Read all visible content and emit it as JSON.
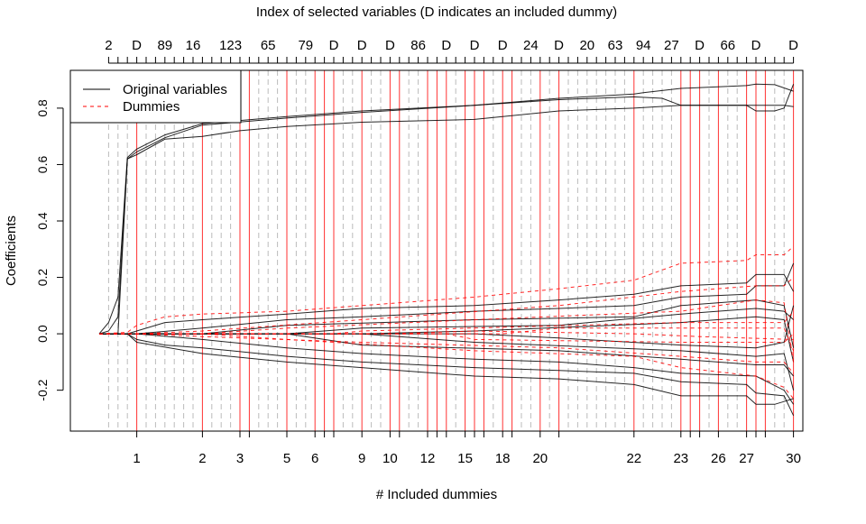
{
  "chart_data": {
    "type": "line",
    "title": "Index of selected variables (D indicates an included dummy)",
    "xlabel": "# Included dummies",
    "ylabel": "Coefficients",
    "ylim": [
      -0.345,
      0.934
    ],
    "y_ticks": [
      "-0.2",
      "0.0",
      "0.2",
      "0.4",
      "0.6",
      "0.8"
    ],
    "y_tick_values": [
      -0.2,
      0.0,
      0.2,
      0.4,
      0.6,
      0.8
    ],
    "n_steps": 74,
    "top_labels": [
      {
        "step": 1,
        "label": "2"
      },
      {
        "step": 4,
        "label": "D"
      },
      {
        "step": 7,
        "label": "89"
      },
      {
        "step": 10,
        "label": "16"
      },
      {
        "step": 14,
        "label": "123"
      },
      {
        "step": 18,
        "label": "65"
      },
      {
        "step": 22,
        "label": "79"
      },
      {
        "step": 25,
        "label": "D"
      },
      {
        "step": 28,
        "label": "D"
      },
      {
        "step": 31,
        "label": "D"
      },
      {
        "step": 34,
        "label": "86"
      },
      {
        "step": 37,
        "label": "D"
      },
      {
        "step": 40,
        "label": "D"
      },
      {
        "step": 43,
        "label": "D"
      },
      {
        "step": 46,
        "label": "24"
      },
      {
        "step": 49,
        "label": "D"
      },
      {
        "step": 52,
        "label": "20"
      },
      {
        "step": 55,
        "label": "63"
      },
      {
        "step": 58,
        "label": "94"
      },
      {
        "step": 61,
        "label": "27"
      },
      {
        "step": 64,
        "label": "D"
      },
      {
        "step": 67,
        "label": "66"
      },
      {
        "step": 70,
        "label": "D"
      },
      {
        "step": 74,
        "label": "D"
      }
    ],
    "dummy_steps": [
      4,
      11,
      15,
      16,
      20,
      23,
      24,
      25,
      28,
      31,
      32,
      35,
      36,
      37,
      39,
      40,
      41,
      43,
      44,
      47,
      49,
      57,
      62,
      63,
      64,
      66,
      69,
      70,
      71,
      74
    ],
    "bottom_labels": [
      {
        "step": 4,
        "label": "1"
      },
      {
        "step": 11,
        "label": "2"
      },
      {
        "step": 15,
        "label": "3"
      },
      {
        "step": 20,
        "label": "5"
      },
      {
        "step": 23,
        "label": "6"
      },
      {
        "step": 28,
        "label": "9"
      },
      {
        "step": 31,
        "label": "10"
      },
      {
        "step": 35,
        "label": "12"
      },
      {
        "step": 39,
        "label": "15"
      },
      {
        "step": 43,
        "label": "18"
      },
      {
        "step": 47,
        "label": "20"
      },
      {
        "step": 57,
        "label": "22"
      },
      {
        "step": 62,
        "label": "23"
      },
      {
        "step": 66,
        "label": "26"
      },
      {
        "step": 69,
        "label": "27"
      },
      {
        "step": 74,
        "label": "30"
      }
    ],
    "legend": {
      "position": "top-left",
      "entries": [
        {
          "label": "Original variables",
          "color": "#000000",
          "style": "solid"
        },
        {
          "label": "Dummies",
          "color": "#ff0000",
          "style": "dashed"
        }
      ]
    },
    "series": [
      {
        "kind": "original",
        "points": [
          [
            0,
            0
          ],
          [
            1,
            0.04
          ],
          [
            2,
            0.13
          ],
          [
            3,
            0.625
          ],
          [
            4,
            0.655
          ],
          [
            7,
            0.705
          ],
          [
            11,
            0.745
          ],
          [
            20,
            0.77
          ],
          [
            28,
            0.79
          ],
          [
            40,
            0.81
          ],
          [
            49,
            0.835
          ],
          [
            57,
            0.85
          ],
          [
            58,
            0.855
          ],
          [
            62,
            0.87
          ],
          [
            69,
            0.88
          ],
          [
            70,
            0.885
          ],
          [
            72,
            0.883
          ],
          [
            74,
            0.86
          ]
        ]
      },
      {
        "kind": "original",
        "points": [
          [
            0,
            0
          ],
          [
            1,
            0.01
          ],
          [
            2,
            0.06
          ],
          [
            3,
            0.62
          ],
          [
            4,
            0.645
          ],
          [
            7,
            0.695
          ],
          [
            11,
            0.74
          ],
          [
            20,
            0.765
          ],
          [
            28,
            0.785
          ],
          [
            40,
            0.81
          ],
          [
            49,
            0.83
          ],
          [
            57,
            0.84
          ],
          [
            60,
            0.835
          ],
          [
            62,
            0.81
          ],
          [
            69,
            0.81
          ],
          [
            70,
            0.79
          ],
          [
            72,
            0.79
          ],
          [
            73,
            0.8
          ],
          [
            74,
            0.885
          ]
        ]
      },
      {
        "kind": "original",
        "points": [
          [
            0,
            0
          ],
          [
            2,
            0.0
          ],
          [
            3,
            0.62
          ],
          [
            4,
            0.635
          ],
          [
            7,
            0.69
          ],
          [
            11,
            0.7
          ],
          [
            15,
            0.72
          ],
          [
            20,
            0.735
          ],
          [
            28,
            0.75
          ],
          [
            40,
            0.76
          ],
          [
            49,
            0.79
          ],
          [
            57,
            0.8
          ],
          [
            62,
            0.81
          ],
          [
            70,
            0.81
          ],
          [
            73,
            0.81
          ],
          [
            74,
            0.805
          ]
        ]
      },
      {
        "kind": "original",
        "points": [
          [
            0,
            0
          ],
          [
            3,
            0
          ],
          [
            4,
            0.01
          ],
          [
            7,
            0.04
          ],
          [
            11,
            0.05
          ],
          [
            20,
            0.07
          ],
          [
            28,
            0.09
          ],
          [
            40,
            0.1
          ],
          [
            49,
            0.12
          ],
          [
            57,
            0.14
          ],
          [
            62,
            0.17
          ],
          [
            69,
            0.18
          ],
          [
            70,
            0.21
          ],
          [
            73,
            0.21
          ],
          [
            74,
            0.15
          ]
        ]
      },
      {
        "kind": "original",
        "points": [
          [
            0,
            0
          ],
          [
            4,
            0
          ],
          [
            11,
            0.02
          ],
          [
            20,
            0.05
          ],
          [
            28,
            0.06
          ],
          [
            40,
            0.08
          ],
          [
            49,
            0.09
          ],
          [
            57,
            0.1
          ],
          [
            62,
            0.13
          ],
          [
            69,
            0.14
          ],
          [
            70,
            0.17
          ],
          [
            73,
            0.17
          ],
          [
            74,
            0.25
          ]
        ]
      },
      {
        "kind": "original",
        "points": [
          [
            0,
            0
          ],
          [
            11,
            0
          ],
          [
            20,
            0.03
          ],
          [
            40,
            0.05
          ],
          [
            57,
            0.06
          ],
          [
            62,
            0.1
          ],
          [
            70,
            0.12
          ],
          [
            73,
            0.1
          ],
          [
            74,
            -0.05
          ]
        ]
      },
      {
        "kind": "original",
        "points": [
          [
            0,
            0
          ],
          [
            20,
            0
          ],
          [
            28,
            0.02
          ],
          [
            49,
            0.03
          ],
          [
            62,
            0.07
          ],
          [
            70,
            0.09
          ],
          [
            73,
            0.08
          ],
          [
            74,
            0.05
          ]
        ]
      },
      {
        "kind": "original",
        "points": [
          [
            0,
            0
          ],
          [
            28,
            0
          ],
          [
            40,
            0.01
          ],
          [
            62,
            0.04
          ],
          [
            70,
            0.06
          ],
          [
            73,
            0.05
          ],
          [
            74,
            -0.1
          ]
        ]
      },
      {
        "kind": "original",
        "points": [
          [
            0,
            0
          ],
          [
            3,
            0
          ],
          [
            4,
            -0.02
          ],
          [
            7,
            -0.04
          ],
          [
            11,
            -0.05
          ],
          [
            20,
            -0.08
          ],
          [
            28,
            -0.1
          ],
          [
            40,
            -0.12
          ],
          [
            49,
            -0.13
          ],
          [
            57,
            -0.14
          ],
          [
            62,
            -0.17
          ],
          [
            69,
            -0.18
          ],
          [
            70,
            -0.21
          ],
          [
            73,
            -0.22
          ],
          [
            74,
            -0.29
          ]
        ]
      },
      {
        "kind": "original",
        "points": [
          [
            0,
            0
          ],
          [
            4,
            0
          ],
          [
            11,
            -0.02
          ],
          [
            20,
            -0.05
          ],
          [
            28,
            -0.07
          ],
          [
            40,
            -0.09
          ],
          [
            49,
            -0.1
          ],
          [
            57,
            -0.12
          ],
          [
            62,
            -0.14
          ],
          [
            70,
            -0.15
          ],
          [
            73,
            -0.2
          ],
          [
            74,
            -0.25
          ]
        ]
      },
      {
        "kind": "original",
        "points": [
          [
            0,
            0
          ],
          [
            20,
            0
          ],
          [
            28,
            -0.04
          ],
          [
            49,
            -0.06
          ],
          [
            62,
            -0.09
          ],
          [
            70,
            -0.11
          ],
          [
            73,
            -0.11
          ],
          [
            74,
            -0.15
          ]
        ]
      },
      {
        "kind": "original",
        "points": [
          [
            0,
            0
          ],
          [
            28,
            0
          ],
          [
            40,
            -0.03
          ],
          [
            62,
            -0.06
          ],
          [
            70,
            -0.08
          ],
          [
            73,
            -0.07
          ],
          [
            74,
            -0.2
          ]
        ]
      },
      {
        "kind": "original",
        "points": [
          [
            0,
            0
          ],
          [
            40,
            0
          ],
          [
            49,
            -0.015
          ],
          [
            62,
            -0.04
          ],
          [
            70,
            -0.05
          ],
          [
            73,
            -0.03
          ],
          [
            74,
            0.1
          ]
        ]
      },
      {
        "kind": "original",
        "points": [
          [
            0,
            0
          ],
          [
            3,
            0
          ],
          [
            4,
            -0.03
          ],
          [
            11,
            -0.07
          ],
          [
            20,
            -0.1
          ],
          [
            40,
            -0.15
          ],
          [
            49,
            -0.16
          ],
          [
            57,
            -0.18
          ],
          [
            62,
            -0.22
          ],
          [
            69,
            -0.22
          ],
          [
            70,
            -0.25
          ],
          [
            72,
            -0.25
          ],
          [
            73,
            -0.24
          ],
          [
            74,
            -0.23
          ]
        ]
      },
      {
        "kind": "dummy",
        "points": [
          [
            0,
            0
          ],
          [
            3,
            0.005
          ],
          [
            4,
            0.03
          ],
          [
            7,
            0.06
          ],
          [
            11,
            0.07
          ],
          [
            20,
            0.08
          ],
          [
            28,
            0.1
          ],
          [
            40,
            0.13
          ],
          [
            49,
            0.16
          ],
          [
            57,
            0.19
          ],
          [
            62,
            0.25
          ],
          [
            69,
            0.26
          ],
          [
            70,
            0.28
          ],
          [
            73,
            0.28
          ],
          [
            74,
            0.31
          ]
        ]
      },
      {
        "kind": "dummy",
        "points": [
          [
            0,
            0
          ],
          [
            4,
            0
          ],
          [
            11,
            0.01
          ],
          [
            28,
            0.05
          ],
          [
            49,
            0.1
          ],
          [
            62,
            0.15
          ],
          [
            70,
            0.17
          ],
          [
            73,
            0.17
          ],
          [
            74,
            0.2
          ]
        ]
      },
      {
        "kind": "dummy",
        "points": [
          [
            0,
            0
          ],
          [
            11,
            0
          ],
          [
            20,
            0.02
          ],
          [
            40,
            0.05
          ],
          [
            62,
            0.08
          ],
          [
            70,
            0.12
          ],
          [
            73,
            0.11
          ],
          [
            74,
            -0.1
          ]
        ]
      },
      {
        "kind": "dummy",
        "points": [
          [
            0,
            0
          ],
          [
            25,
            0
          ],
          [
            28,
            0.01
          ],
          [
            62,
            0.04
          ],
          [
            73,
            0.04
          ],
          [
            74,
            0.08
          ]
        ]
      },
      {
        "kind": "dummy",
        "points": [
          [
            0,
            0
          ],
          [
            4,
            0
          ],
          [
            11,
            -0.01
          ],
          [
            28,
            -0.03
          ],
          [
            49,
            -0.05
          ],
          [
            62,
            -0.08
          ],
          [
            70,
            -0.1
          ],
          [
            73,
            -0.1
          ],
          [
            74,
            -0.14
          ]
        ]
      },
      {
        "kind": "dummy",
        "points": [
          [
            0,
            0
          ],
          [
            11,
            0
          ],
          [
            20,
            -0.02
          ],
          [
            40,
            -0.06
          ],
          [
            57,
            -0.08
          ],
          [
            62,
            -0.12
          ],
          [
            70,
            -0.15
          ],
          [
            73,
            -0.19
          ],
          [
            74,
            -0.23
          ]
        ]
      },
      {
        "kind": "dummy",
        "points": [
          [
            0,
            0
          ],
          [
            37,
            0
          ],
          [
            40,
            -0.02
          ],
          [
            62,
            -0.03
          ],
          [
            73,
            -0.03
          ],
          [
            74,
            0.0
          ]
        ]
      },
      {
        "kind": "dummy",
        "points": [
          [
            0,
            0
          ],
          [
            43,
            0
          ],
          [
            49,
            0.02
          ],
          [
            62,
            0.02
          ],
          [
            73,
            0.02
          ],
          [
            74,
            -0.06
          ]
        ]
      },
      {
        "kind": "dummy",
        "points": [
          [
            0,
            0
          ],
          [
            31,
            0
          ],
          [
            40,
            0.01
          ],
          [
            57,
            0.0
          ],
          [
            64,
            -0.01
          ],
          [
            74,
            -0.02
          ]
        ]
      }
    ]
  }
}
